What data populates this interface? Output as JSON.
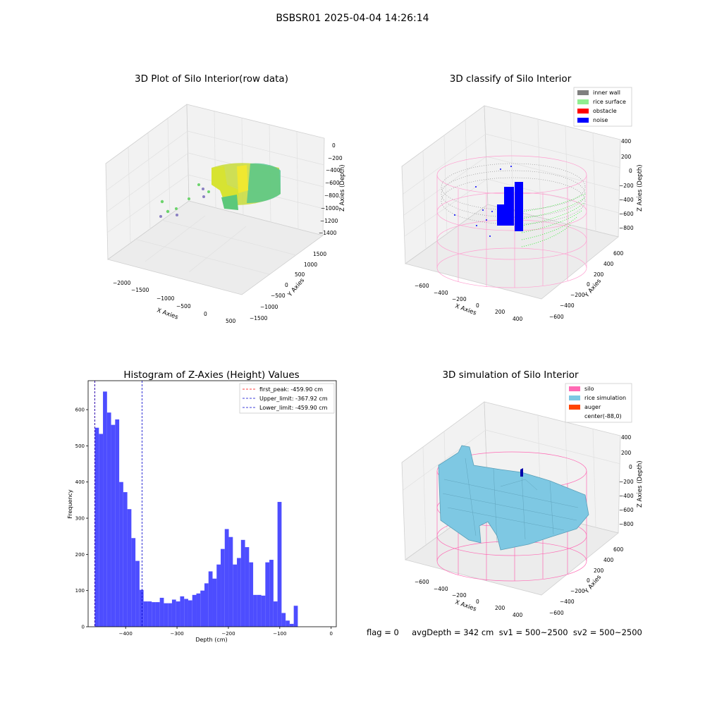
{
  "figure": {
    "suptitle": "BSBSR01 2025-04-04 14:26:14",
    "footer": "flag = 0     avgDepth = 342 cm  sv1 = 500~2500  sv2 = 500~2500"
  },
  "colors": {
    "inner_wall": "#808080",
    "rice_surface": "#90ee90",
    "obstacle": "#ff0000",
    "noise": "#0000ff",
    "silo": "#ff69b4",
    "rice_simulation": "#7ec8e3",
    "auger": "#ff4500",
    "hist_bar": "#4d4dff",
    "peak_line": "#ff0000",
    "limit_line": "#0000cc"
  },
  "panels": {
    "raw": {
      "title": "3D Plot of Silo Interior(row data)",
      "xlabel": "X Axies",
      "ylabel": "Y Axies",
      "zlabel": "Z Axies (Depth)",
      "xticks": [
        "−2000",
        "−1500",
        "−1000",
        "−500",
        "0",
        "500"
      ],
      "yticks": [
        "1500",
        "1000",
        "500",
        "0",
        "−500",
        "−1000",
        "−1500"
      ],
      "zticks": [
        "0",
        "−200",
        "−400",
        "−600",
        "−800",
        "−1000",
        "−1200",
        "−1400"
      ]
    },
    "classify": {
      "title": "3D classify of Silo Interior",
      "xlabel": "X Axies",
      "ylabel": "Y Axies",
      "zlabel": "Z Axies (Depth)",
      "xticks": [
        "−600",
        "−400",
        "−200",
        "0",
        "200",
        "400"
      ],
      "yticks": [
        "600",
        "400",
        "200",
        "0",
        "−200",
        "−400",
        "−600"
      ],
      "zticks": [
        "400",
        "200",
        "0",
        "−200",
        "−400",
        "−600",
        "−800"
      ],
      "legend": [
        "inner wall",
        "rice surface",
        "obstacle",
        "noise"
      ]
    },
    "simulation": {
      "title": "3D simulation of Silo Interior",
      "xlabel": "X Axies",
      "ylabel": "Y Axies",
      "zlabel": "Z Axies (Depth)",
      "xticks": [
        "−600",
        "−400",
        "−200",
        "0",
        "200",
        "400"
      ],
      "yticks": [
        "600",
        "400",
        "200",
        "0",
        "−200",
        "−400",
        "−600"
      ],
      "zticks": [
        "400",
        "200",
        "0",
        "−200",
        "−400",
        "−600",
        "−800"
      ],
      "legend": [
        "silo",
        "rice simulation",
        "auger",
        "center(-88,0)"
      ]
    }
  },
  "chart_data": [
    {
      "type": "bar",
      "title": "Histogram of Z-Axies (Height) Values",
      "xlabel": "Depth (cm)",
      "ylabel": "Frequency",
      "xlim": [
        -473,
        10
      ],
      "ylim": [
        0,
        680
      ],
      "xticks": [
        -400,
        -300,
        -200,
        -100,
        0
      ],
      "yticks": [
        0,
        100,
        200,
        300,
        400,
        500,
        600
      ],
      "bin_start": -459.9,
      "bin_width": 7.9,
      "values": [
        550,
        533,
        650,
        592,
        558,
        573,
        400,
        372,
        325,
        245,
        182,
        102,
        70,
        70,
        68,
        68,
        80,
        65,
        65,
        75,
        70,
        84,
        77,
        73,
        88,
        92,
        100,
        120,
        153,
        133,
        172,
        215,
        270,
        248,
        172,
        190,
        240,
        220,
        178,
        88,
        88,
        86,
        178,
        185,
        70,
        345,
        38,
        17,
        8,
        58
      ],
      "vlines": [
        {
          "label": "first_peak: -459.90 cm",
          "x": -459.9,
          "color": "#ff0000"
        },
        {
          "label": "Upper_limit: -367.92 cm",
          "x": -367.92,
          "color": "#0000cc"
        },
        {
          "label": "Lower_limit: -459.90 cm",
          "x": -459.9,
          "color": "#0000cc"
        }
      ],
      "legend_position": "upper right"
    }
  ]
}
